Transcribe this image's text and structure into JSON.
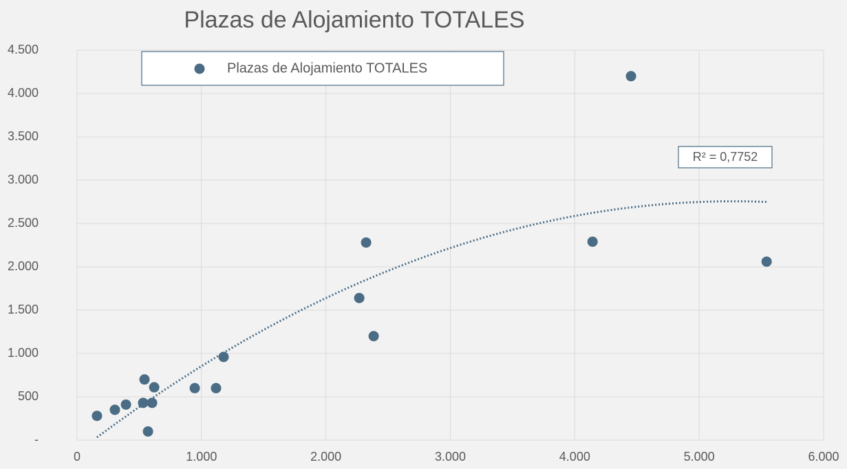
{
  "chart_data": {
    "type": "scatter",
    "title": "Plazas de Alojamiento TOTALES",
    "series": [
      {
        "name": "Plazas de Alojamiento TOTALES",
        "color": "#4a6c84",
        "x": [
          160,
          304,
          393,
          542,
          531,
          603,
          620,
          570,
          946,
          1117,
          1178,
          2268,
          2323,
          2384,
          4143,
          4452,
          5542
        ],
        "values": [
          280,
          350,
          410,
          700,
          430,
          430,
          610,
          100,
          600,
          600,
          960,
          1640,
          2280,
          1200,
          2290,
          4200,
          2060
        ]
      }
    ],
    "trendline": {
      "type": "polynomial",
      "order": 2,
      "label": "R² = 0,7752"
    },
    "xlim": [
      0,
      6000
    ],
    "xticks": [
      0,
      {
        "value": 1000,
        "label": "1.000"
      },
      {
        "value": 2000,
        "label": "2.000"
      },
      {
        "value": 3000,
        "label": "3.000"
      },
      {
        "value": 4000,
        "label": "4.000"
      },
      {
        "value": 5000,
        "label": "5.000"
      },
      {
        "value": 6000,
        "label": "6.000"
      }
    ],
    "ylim": [
      0,
      4500
    ],
    "yticks": [
      {
        "value": 0,
        "label": "-"
      },
      {
        "value": 500,
        "label": "500"
      },
      {
        "value": 1000,
        "label": "1.000"
      },
      {
        "value": 1500,
        "label": "1.500"
      },
      {
        "value": 2000,
        "label": "2.000"
      },
      {
        "value": 2500,
        "label": "2.500"
      },
      {
        "value": 3000,
        "label": "3.000"
      },
      {
        "value": 3500,
        "label": "3.500"
      },
      {
        "value": 4000,
        "label": "4.000"
      },
      {
        "value": 4500,
        "label": "4.500"
      }
    ],
    "grid": true
  }
}
